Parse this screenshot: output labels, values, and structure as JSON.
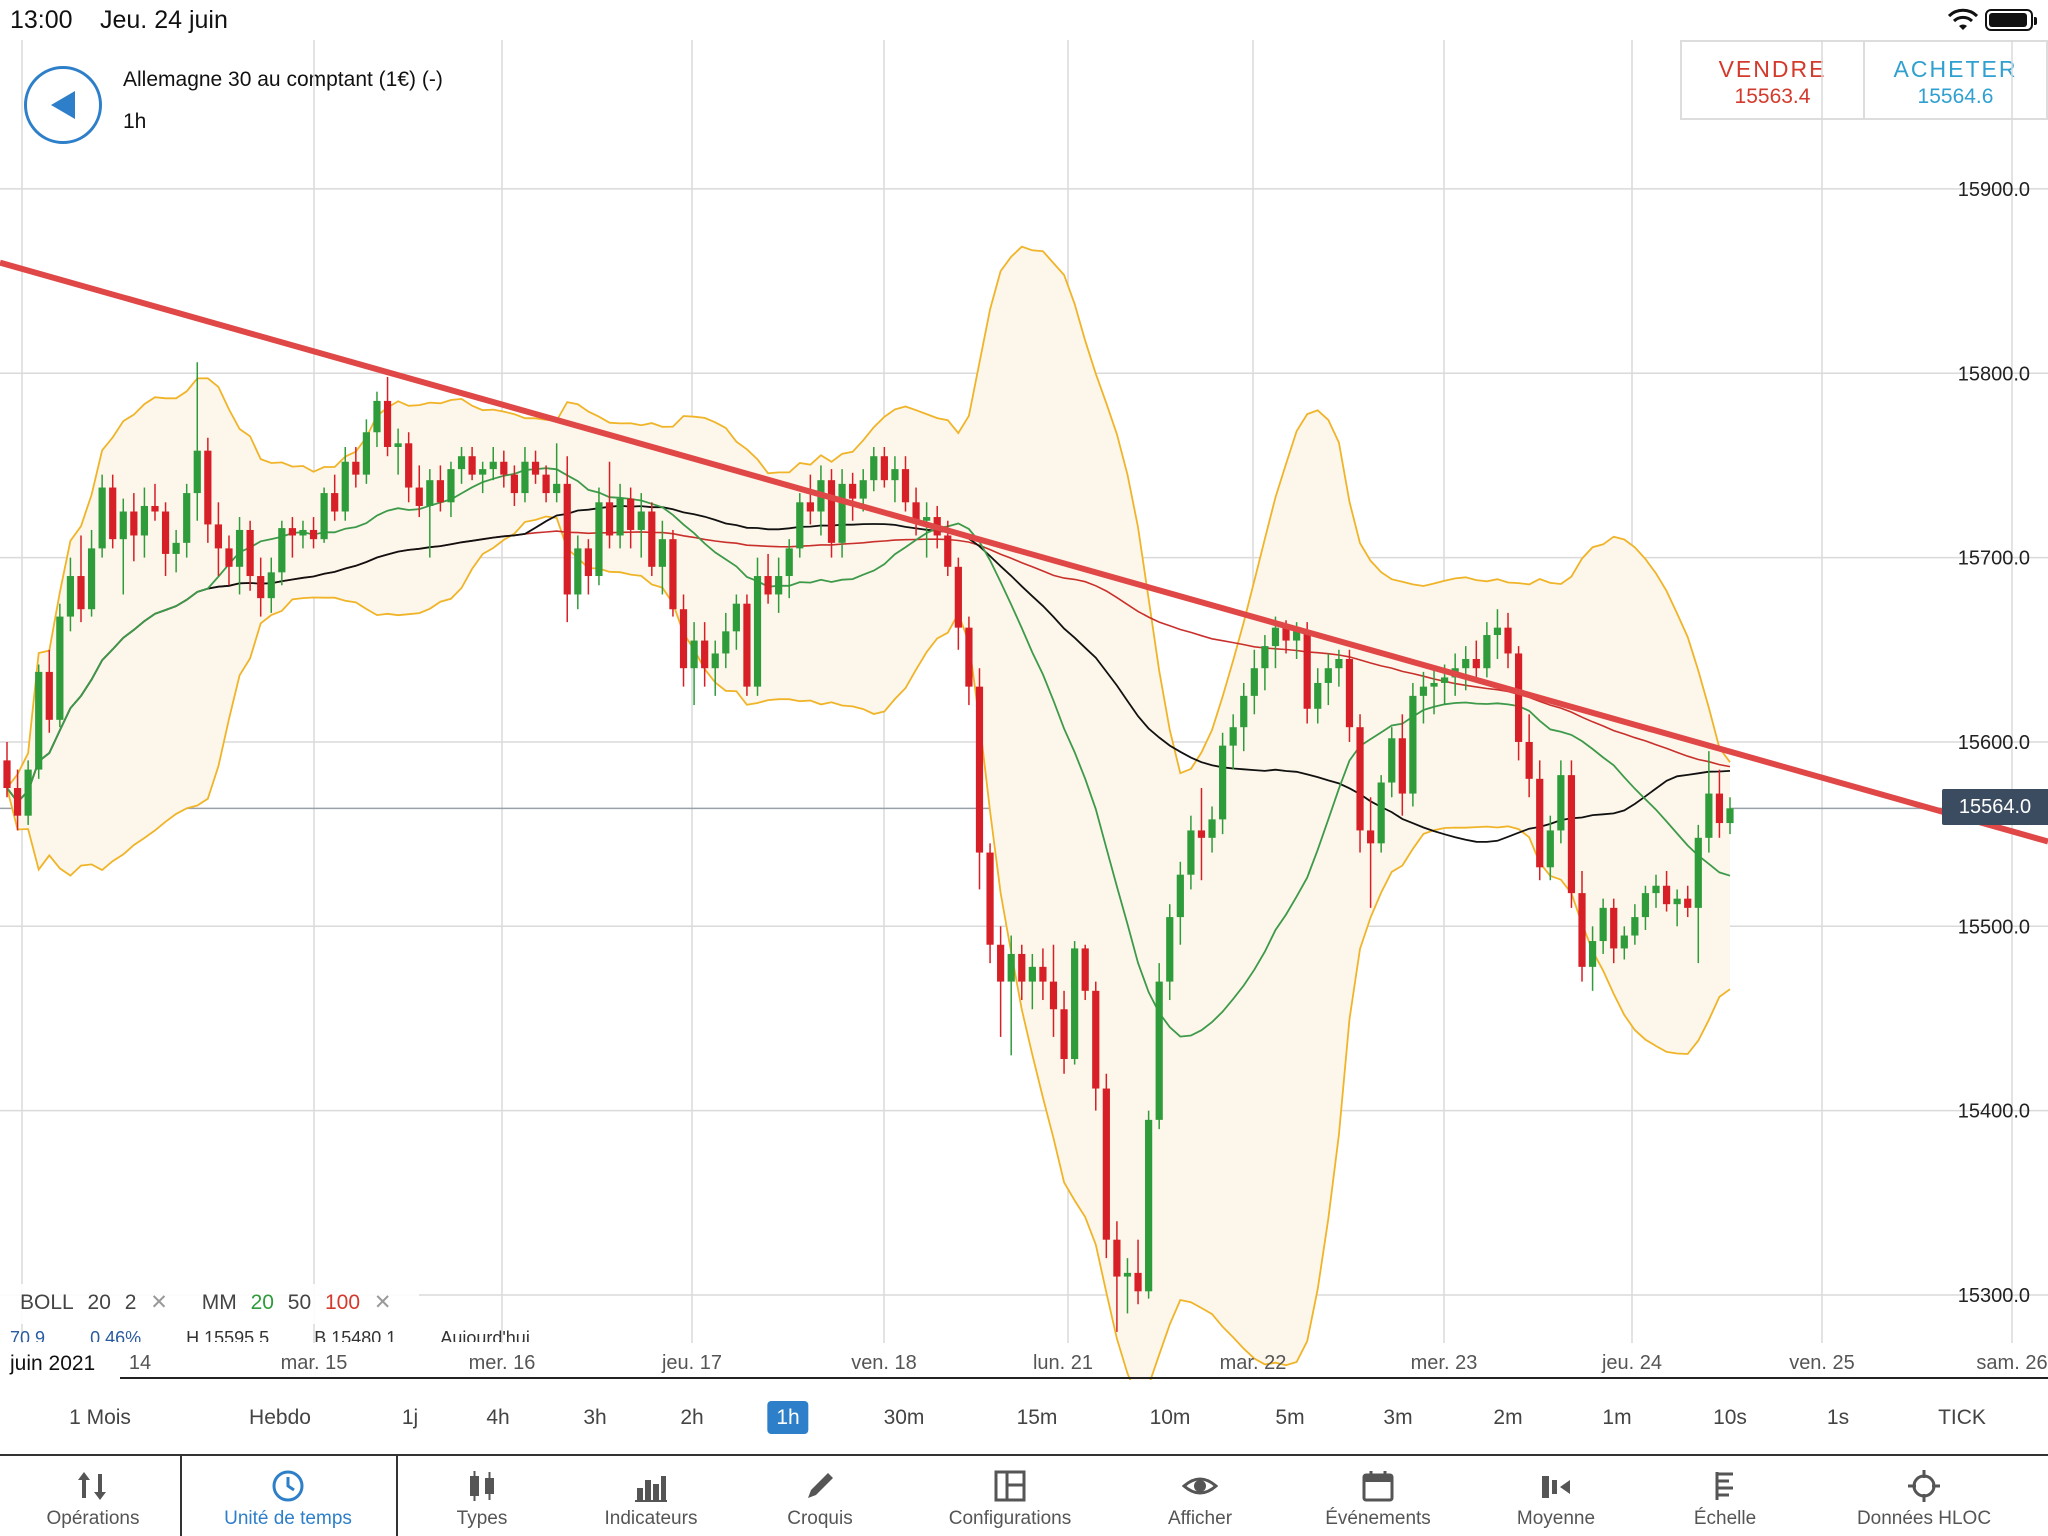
{
  "status": {
    "time": "13:00",
    "date": "Jeu. 24 juin"
  },
  "instrument": {
    "name": "Allemagne 30 au comptant (1€) (-)",
    "timeframe": "1h"
  },
  "trade": {
    "sell_label": "VENDRE",
    "sell_price": "15563.4",
    "buy_label": "ACHETER",
    "buy_price": "15564.6"
  },
  "current_price": "15564.0",
  "legend": {
    "boll": "BOLL",
    "boll_p1": "20",
    "boll_p2": "2",
    "ma": "MM",
    "ma_p1": "20",
    "ma_p2": "50",
    "ma_p3": "100",
    "row2": [
      "70.9",
      "0.46%",
      "H 15595.5",
      "B 15480.1",
      "Aujourd'hui"
    ]
  },
  "month_label": "juin 2021",
  "timeframes": [
    "1 Mois",
    "Hebdo",
    "1j",
    "4h",
    "3h",
    "2h",
    "1h",
    "30m",
    "15m",
    "10m",
    "5m",
    "3m",
    "2m",
    "1m",
    "10s",
    "1s",
    "TICK"
  ],
  "active_timeframe": "1h",
  "toolbar": [
    {
      "label": "Opérations",
      "icon": "operations-icon"
    },
    {
      "label": "Unité de temps",
      "icon": "clock-icon"
    },
    {
      "label": "Types",
      "icon": "candlestick-icon"
    },
    {
      "label": "Indicateurs",
      "icon": "bar-chart-icon"
    },
    {
      "label": "Croquis",
      "icon": "pencil-icon"
    },
    {
      "label": "Configurations",
      "icon": "layout-icon"
    },
    {
      "label": "Afficher",
      "icon": "eye-icon"
    },
    {
      "label": "Événements",
      "icon": "calendar-icon"
    },
    {
      "label": "Moyenne",
      "icon": "average-icon"
    },
    {
      "label": "Échelle",
      "icon": "scale-icon"
    },
    {
      "label": "Données HLOC",
      "icon": "crosshair-icon"
    }
  ],
  "chart_data": {
    "type": "candlestick",
    "y_ticks": [
      "15900.0",
      "15800.0",
      "15700.0",
      "15600.0",
      "15500.0",
      "15400.0",
      "15300.0"
    ],
    "y_values": [
      15900,
      15800,
      15700,
      15600,
      15500,
      15400,
      15300
    ],
    "x_labels": [
      "14",
      "mar. 15",
      "mer. 16",
      "jeu. 17",
      "ven. 18",
      "lun. 21",
      "mar. 22",
      "mer. 23",
      "jeu. 24",
      "ven. 25",
      "sam. 26"
    ],
    "ylim": [
      15274,
      15963
    ],
    "grid": true,
    "colors": {
      "up": "#2f9c3b",
      "down": "#d61f26",
      "boll": "#f0b429",
      "ma20": "#3d9a4a",
      "ma50": "#111111",
      "ma100": "#c9302c",
      "trend": "#e04848"
    },
    "candles": [
      [
        15590,
        15600,
        15570,
        15575
      ],
      [
        15575,
        15585,
        15552,
        15560
      ],
      [
        15560,
        15590,
        15555,
        15585
      ],
      [
        15585,
        15642,
        15580,
        15638
      ],
      [
        15638,
        15650,
        15605,
        15612
      ],
      [
        15612,
        15675,
        15608,
        15668
      ],
      [
        15668,
        15700,
        15660,
        15690
      ],
      [
        15690,
        15712,
        15665,
        15672
      ],
      [
        15672,
        15715,
        15668,
        15705
      ],
      [
        15705,
        15745,
        15700,
        15738
      ],
      [
        15738,
        15745,
        15705,
        15710
      ],
      [
        15710,
        15732,
        15680,
        15725
      ],
      [
        15725,
        15735,
        15698,
        15712
      ],
      [
        15712,
        15738,
        15700,
        15728
      ],
      [
        15728,
        15740,
        15720,
        15725
      ],
      [
        15725,
        15730,
        15690,
        15702
      ],
      [
        15702,
        15715,
        15692,
        15708
      ],
      [
        15708,
        15740,
        15700,
        15735
      ],
      [
        15735,
        15806,
        15720,
        15758
      ],
      [
        15758,
        15765,
        15708,
        15718
      ],
      [
        15718,
        15730,
        15690,
        15705
      ],
      [
        15705,
        15712,
        15685,
        15695
      ],
      [
        15695,
        15722,
        15680,
        15715
      ],
      [
        15715,
        15720,
        15682,
        15690
      ],
      [
        15690,
        15700,
        15668,
        15678
      ],
      [
        15678,
        15700,
        15670,
        15692
      ],
      [
        15692,
        15720,
        15685,
        15716
      ],
      [
        15716,
        15722,
        15700,
        15712
      ],
      [
        15712,
        15720,
        15705,
        15715
      ],
      [
        15715,
        15722,
        15705,
        15710
      ],
      [
        15710,
        15738,
        15708,
        15735
      ],
      [
        15735,
        15745,
        15720,
        15725
      ],
      [
        15725,
        15760,
        15720,
        15752
      ],
      [
        15752,
        15760,
        15738,
        15745
      ],
      [
        15745,
        15775,
        15740,
        15768
      ],
      [
        15768,
        15790,
        15760,
        15785
      ],
      [
        15785,
        15798,
        15755,
        15760
      ],
      [
        15760,
        15770,
        15745,
        15762
      ],
      [
        15762,
        15768,
        15730,
        15738
      ],
      [
        15738,
        15750,
        15722,
        15728
      ],
      [
        15728,
        15748,
        15700,
        15742
      ],
      [
        15742,
        15750,
        15725,
        15730
      ],
      [
        15730,
        15752,
        15722,
        15748
      ],
      [
        15748,
        15760,
        15740,
        15755
      ],
      [
        15755,
        15760,
        15742,
        15745
      ],
      [
        15745,
        15752,
        15735,
        15748
      ],
      [
        15748,
        15760,
        15742,
        15752
      ],
      [
        15752,
        15758,
        15738,
        15745
      ],
      [
        15745,
        15750,
        15728,
        15735
      ],
      [
        15735,
        15760,
        15730,
        15752
      ],
      [
        15752,
        15758,
        15740,
        15745
      ],
      [
        15745,
        15750,
        15730,
        15735
      ],
      [
        15735,
        15762,
        15730,
        15740
      ],
      [
        15740,
        15755,
        15665,
        15680
      ],
      [
        15680,
        15712,
        15672,
        15705
      ],
      [
        15705,
        15710,
        15680,
        15690
      ],
      [
        15690,
        15738,
        15685,
        15730
      ],
      [
        15730,
        15752,
        15705,
        15712
      ],
      [
        15712,
        15740,
        15705,
        15732
      ],
      [
        15732,
        15738,
        15705,
        15715
      ],
      [
        15715,
        15735,
        15700,
        15725
      ],
      [
        15725,
        15730,
        15690,
        15695
      ],
      [
        15695,
        15720,
        15680,
        15710
      ],
      [
        15710,
        15715,
        15668,
        15672
      ],
      [
        15672,
        15680,
        15630,
        15640
      ],
      [
        15640,
        15665,
        15620,
        15655
      ],
      [
        15655,
        15665,
        15630,
        15640
      ],
      [
        15640,
        15655,
        15625,
        15648
      ],
      [
        15648,
        15670,
        15640,
        15660
      ],
      [
        15660,
        15680,
        15650,
        15675
      ],
      [
        15675,
        15680,
        15625,
        15630
      ],
      [
        15630,
        15700,
        15625,
        15690
      ],
      [
        15690,
        15702,
        15675,
        15680
      ],
      [
        15680,
        15700,
        15670,
        15690
      ],
      [
        15690,
        15710,
        15678,
        15705
      ],
      [
        15705,
        15735,
        15700,
        15730
      ],
      [
        15730,
        15745,
        15718,
        15725
      ],
      [
        15725,
        15750,
        15712,
        15742
      ],
      [
        15742,
        15748,
        15700,
        15708
      ],
      [
        15708,
        15748,
        15700,
        15740
      ],
      [
        15740,
        15746,
        15720,
        15732
      ],
      [
        15732,
        15748,
        15725,
        15742
      ],
      [
        15742,
        15760,
        15736,
        15755
      ],
      [
        15755,
        15760,
        15738,
        15742
      ],
      [
        15742,
        15755,
        15730,
        15748
      ],
      [
        15748,
        15755,
        15725,
        15730
      ],
      [
        15730,
        15738,
        15712,
        15720
      ],
      [
        15720,
        15730,
        15700,
        15722
      ],
      [
        15722,
        15728,
        15705,
        15712
      ],
      [
        15712,
        15720,
        15690,
        15695
      ],
      [
        15695,
        15700,
        15650,
        15662
      ],
      [
        15662,
        15668,
        15620,
        15630
      ],
      [
        15630,
        15640,
        15520,
        15540
      ],
      [
        15540,
        15545,
        15480,
        15490
      ],
      [
        15490,
        15500,
        15440,
        15470
      ],
      [
        15470,
        15495,
        15430,
        15485
      ],
      [
        15485,
        15490,
        15460,
        15470
      ],
      [
        15470,
        15485,
        15455,
        15478
      ],
      [
        15478,
        15488,
        15460,
        15470
      ],
      [
        15470,
        15490,
        15440,
        15455
      ],
      [
        15455,
        15465,
        15420,
        15428
      ],
      [
        15428,
        15492,
        15425,
        15488
      ],
      [
        15488,
        15490,
        15460,
        15465
      ],
      [
        15465,
        15470,
        15400,
        15412
      ],
      [
        15412,
        15420,
        15320,
        15330
      ],
      [
        15330,
        15340,
        15280,
        15310
      ],
      [
        15310,
        15320,
        15290,
        15312
      ],
      [
        15312,
        15330,
        15295,
        15302
      ],
      [
        15302,
        15400,
        15298,
        15395
      ],
      [
        15395,
        15480,
        15390,
        15470
      ],
      [
        15470,
        15512,
        15460,
        15505
      ],
      [
        15505,
        15535,
        15490,
        15528
      ],
      [
        15528,
        15560,
        15520,
        15552
      ],
      [
        15552,
        15575,
        15525,
        15548
      ],
      [
        15548,
        15565,
        15540,
        15558
      ],
      [
        15558,
        15605,
        15550,
        15598
      ],
      [
        15598,
        15615,
        15585,
        15608
      ],
      [
        15608,
        15632,
        15595,
        15625
      ],
      [
        15625,
        15650,
        15615,
        15640
      ],
      [
        15640,
        15658,
        15628,
        15652
      ],
      [
        15652,
        15668,
        15640,
        15662
      ],
      [
        15662,
        15666,
        15648,
        15655
      ],
      [
        15655,
        15665,
        15645,
        15660
      ],
      [
        15660,
        15665,
        15610,
        15618
      ],
      [
        15618,
        15640,
        15610,
        15632
      ],
      [
        15632,
        15648,
        15620,
        15640
      ],
      [
        15640,
        15650,
        15630,
        15645
      ],
      [
        15645,
        15650,
        15600,
        15608
      ],
      [
        15608,
        15615,
        15540,
        15552
      ],
      [
        15552,
        15570,
        15510,
        15545
      ],
      [
        15545,
        15582,
        15540,
        15578
      ],
      [
        15578,
        15608,
        15570,
        15602
      ],
      [
        15602,
        15615,
        15560,
        15572
      ],
      [
        15572,
        15632,
        15565,
        15625
      ],
      [
        15625,
        15638,
        15610,
        15630
      ],
      [
        15630,
        15640,
        15615,
        15632
      ],
      [
        15632,
        15642,
        15620,
        15635
      ],
      [
        15635,
        15648,
        15625,
        15640
      ],
      [
        15640,
        15652,
        15628,
        15645
      ],
      [
        15645,
        15655,
        15635,
        15640
      ],
      [
        15640,
        15665,
        15635,
        15658
      ],
      [
        15658,
        15672,
        15645,
        15662
      ],
      [
        15662,
        15670,
        15640,
        15648
      ],
      [
        15648,
        15652,
        15590,
        15600
      ],
      [
        15600,
        15615,
        15570,
        15580
      ],
      [
        15580,
        15590,
        15525,
        15532
      ],
      [
        15532,
        15560,
        15525,
        15552
      ],
      [
        15552,
        15590,
        15545,
        15582
      ],
      [
        15582,
        15590,
        15510,
        15518
      ],
      [
        15518,
        15530,
        15470,
        15478
      ],
      [
        15478,
        15500,
        15465,
        15492
      ],
      [
        15492,
        15515,
        15485,
        15510
      ],
      [
        15510,
        15515,
        15480,
        15488
      ],
      [
        15488,
        15500,
        15482,
        15495
      ],
      [
        15495,
        15512,
        15490,
        15505
      ],
      [
        15505,
        15522,
        15498,
        15518
      ],
      [
        15518,
        15528,
        15510,
        15522
      ],
      [
        15522,
        15530,
        15508,
        15512
      ],
      [
        15512,
        15520,
        15500,
        15515
      ],
      [
        15515,
        15522,
        15505,
        15510
      ],
      [
        15510,
        15555,
        15480,
        15548
      ],
      [
        15548,
        15595,
        15540,
        15572
      ],
      [
        15572,
        15585,
        15548,
        15556
      ],
      [
        15556,
        15570,
        15550,
        15564
      ]
    ]
  }
}
